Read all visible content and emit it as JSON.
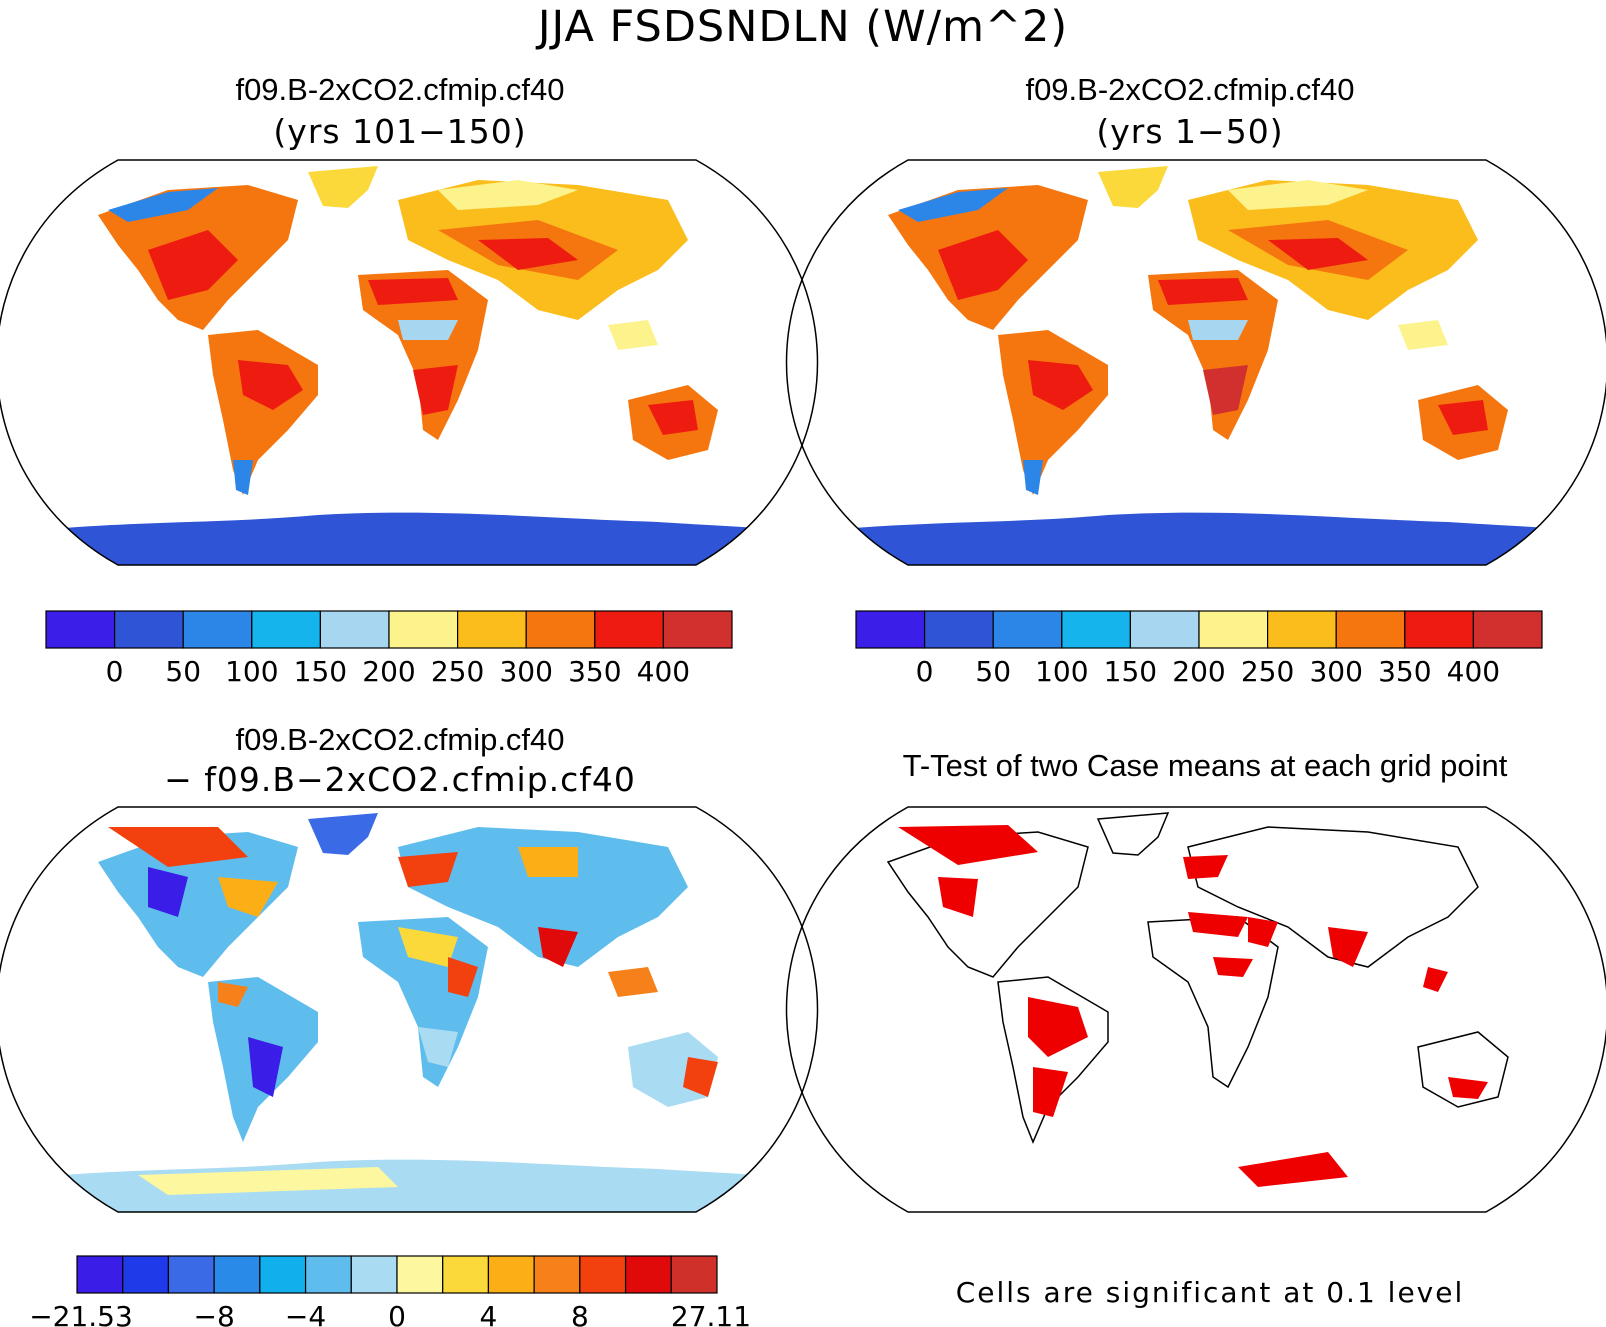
{
  "main_title": "JJA FSDSNDLN (W/m^2)",
  "panels": [
    {
      "title": "f09.B-2xCO2.cfmip.cf40",
      "subtitle": "(yrs 101−150)"
    },
    {
      "title": "f09.B-2xCO2.cfmip.cf40",
      "subtitle": "(yrs 1−50)"
    },
    {
      "title": "f09.B-2xCO2.cfmip.cf40",
      "subtitle": "− f09.B−2xCO2.cfmip.cf40"
    },
    {
      "title": "T-Test of two Case means at each grid point"
    }
  ],
  "colorbars": {
    "absolute": {
      "colors": [
        "#3b1ee8",
        "#2f55d6",
        "#2c86e8",
        "#16b4ec",
        "#a7d7f0",
        "#fdf38d",
        "#fbbd1c",
        "#f5760f",
        "#ee1b10",
        "#d2302f"
      ],
      "labels": [
        "0",
        "50",
        "100",
        "150",
        "200",
        "250",
        "300",
        "350",
        "400"
      ]
    },
    "difference": {
      "colors": [
        "#3a1ee8",
        "#1f3ae8",
        "#3a6ae6",
        "#2a8ae8",
        "#11b0ec",
        "#5fbdee",
        "#a9dbf2",
        "#fdf8a0",
        "#fbd93a",
        "#fbae16",
        "#f6801a",
        "#f2400f",
        "#e00a0a",
        "#d0302a"
      ],
      "labels": [
        "−21.53",
        "−8",
        "−4",
        "0",
        "4",
        "8",
        "27.11"
      ]
    }
  },
  "significance_note": "Cells are significant at 0.1 level",
  "significance_color": "#ee0000"
}
